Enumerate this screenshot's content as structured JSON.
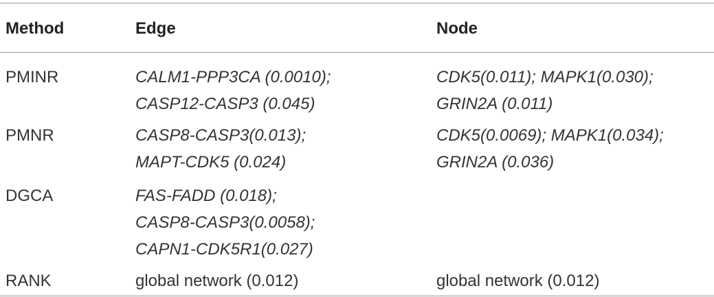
{
  "table": {
    "header": [
      "Method",
      "Edge",
      "Node"
    ],
    "rows": [
      [
        "PMINR",
        [
          "CALM1-PPP3CA (0.0010);",
          "CASP12-CASP3 (0.045)"
        ],
        [
          "CDK5(0.011); MAPK1(0.030);",
          "GRIN2A (0.011)"
        ]
      ],
      [
        "PMNR",
        [
          "CASP8-CASP3(0.013);",
          "MAPT-CDK5 (0.024)"
        ],
        [
          "CDK5(0.0069); MAPK1(0.034);",
          "GRIN2A (0.036)"
        ]
      ],
      [
        "DGCA",
        [
          "FAS-FADD (0.018);",
          "CASP8-CASP3(0.0058);",
          "CAPN1-CDK5R1(0.027)"
        ],
        []
      ],
      [
        "RANK",
        [
          "global network (0.012)"
        ],
        [
          "global network (0.012)"
        ]
      ]
    ]
  }
}
